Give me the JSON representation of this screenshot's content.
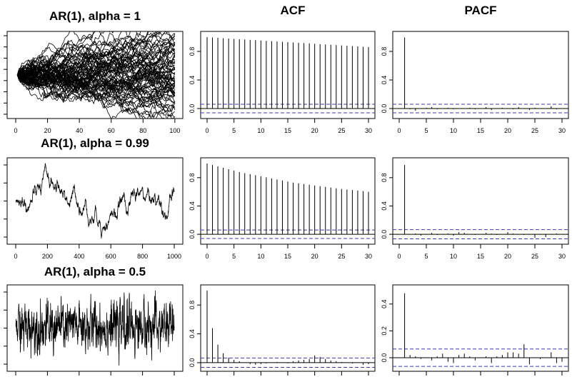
{
  "chart_data": [
    {
      "type": "line",
      "title": "AR(1), alpha = 1",
      "xlabel": "",
      "ylabel": "",
      "xlim": [
        0,
        105
      ],
      "x_ticks": [
        "0",
        "20",
        "40",
        "60",
        "80",
        "100"
      ],
      "series_count": 80,
      "x_count": 100,
      "grid": false
    },
    {
      "type": "bar",
      "title": "ACF",
      "xlabel": "",
      "ylabel": "",
      "xlim": [
        0,
        30
      ],
      "ylim": [
        -0.1,
        1.0
      ],
      "x_ticks": [
        "0",
        "5",
        "10",
        "15",
        "20",
        "25",
        "30"
      ],
      "y_ticks": [
        "0.0",
        "0.4",
        "0.8"
      ],
      "lags": [
        0,
        1,
        2,
        3,
        4,
        5,
        6,
        7,
        8,
        9,
        10,
        11,
        12,
        13,
        14,
        15,
        16,
        17,
        18,
        19,
        20,
        21,
        22,
        23,
        24,
        25,
        26,
        27,
        28,
        29,
        30
      ],
      "values": [
        1.0,
        0.995,
        0.99,
        0.985,
        0.98,
        0.976,
        0.971,
        0.967,
        0.962,
        0.958,
        0.953,
        0.948,
        0.944,
        0.939,
        0.935,
        0.93,
        0.925,
        0.921,
        0.916,
        0.912,
        0.907,
        0.902,
        0.898,
        0.893,
        0.889,
        0.884,
        0.879,
        0.875,
        0.87,
        0.866,
        0.861
      ],
      "ci": 0.06
    },
    {
      "type": "bar",
      "title": "PACF",
      "xlabel": "",
      "ylabel": "",
      "xlim": [
        0,
        30
      ],
      "ylim": [
        -0.1,
        1.0
      ],
      "x_ticks": [
        "0",
        "5",
        "10",
        "15",
        "20",
        "25",
        "30"
      ],
      "y_ticks": [
        "0.0",
        "0.4",
        "0.8"
      ],
      "lags": [
        1,
        2,
        3,
        4,
        5,
        6,
        7,
        8,
        9,
        10,
        11,
        12,
        13,
        14,
        15,
        16,
        17,
        18,
        19,
        20,
        21,
        22,
        23,
        24,
        25,
        26,
        27,
        28,
        29,
        30
      ],
      "values": [
        0.995,
        -0.01,
        -0.03,
        0.0,
        0.01,
        0.02,
        -0.01,
        0.0,
        0.01,
        -0.01,
        0.0,
        0.0,
        0.01,
        -0.01,
        0.0,
        0.02,
        -0.02,
        0.0,
        0.01,
        0.0,
        -0.01,
        0.02,
        0.0,
        -0.02,
        0.01,
        0.0,
        0.0,
        0.03,
        -0.01,
        0.0
      ],
      "ci": 0.06
    },
    {
      "type": "line",
      "title": "AR(1), alpha = 0.99",
      "xlabel": "",
      "ylabel": "",
      "xlim": [
        0,
        1000
      ],
      "x_ticks": [
        "0",
        "200",
        "400",
        "600",
        "800",
        "1000"
      ],
      "x_count": 1000,
      "grid": false
    },
    {
      "type": "bar",
      "title": "",
      "xlabel": "",
      "ylabel": "",
      "xlim": [
        0,
        30
      ],
      "ylim": [
        -0.1,
        1.0
      ],
      "x_ticks": [
        "0",
        "5",
        "10",
        "15",
        "20",
        "25",
        "30"
      ],
      "y_ticks": [
        "0.0",
        "0.4",
        "0.8"
      ],
      "lags": [
        0,
        1,
        2,
        3,
        4,
        5,
        6,
        7,
        8,
        9,
        10,
        11,
        12,
        13,
        14,
        15,
        16,
        17,
        18,
        19,
        20,
        21,
        22,
        23,
        24,
        25,
        26,
        27,
        28,
        29,
        30
      ],
      "values": [
        1.0,
        0.98,
        0.96,
        0.94,
        0.92,
        0.9,
        0.88,
        0.865,
        0.85,
        0.835,
        0.82,
        0.805,
        0.79,
        0.775,
        0.76,
        0.745,
        0.73,
        0.72,
        0.71,
        0.7,
        0.69,
        0.68,
        0.67,
        0.66,
        0.65,
        0.64,
        0.632,
        0.625,
        0.618,
        0.61,
        0.6
      ],
      "ci": 0.06
    },
    {
      "type": "bar",
      "title": "",
      "xlabel": "",
      "ylabel": "",
      "xlim": [
        0,
        30
      ],
      "ylim": [
        -0.1,
        1.0
      ],
      "x_ticks": [
        "0",
        "5",
        "10",
        "15",
        "20",
        "25",
        "30"
      ],
      "y_ticks": [
        "0.0",
        "0.4",
        "0.8"
      ],
      "lags": [
        1,
        2,
        3,
        4,
        5,
        6,
        7,
        8,
        9,
        10,
        11,
        12,
        13,
        14,
        15,
        16,
        17,
        18,
        19,
        20,
        21,
        22,
        23,
        24,
        25,
        26,
        27,
        28,
        29,
        30
      ],
      "values": [
        0.98,
        0.0,
        0.01,
        -0.02,
        0.0,
        0.02,
        -0.01,
        0.0,
        0.01,
        -0.02,
        0.03,
        0.02,
        0.0,
        -0.01,
        0.0,
        0.02,
        0.01,
        -0.01,
        0.0,
        0.03,
        0.01,
        0.0,
        -0.01,
        0.0,
        -0.05,
        0.0,
        -0.04,
        0.0,
        0.01,
        0.0
      ],
      "ci": 0.065
    },
    {
      "type": "line",
      "title": "AR(1), alpha = 0.5",
      "xlabel": "",
      "ylabel": "",
      "xlim": [
        0,
        1000
      ],
      "x_count": 1000,
      "grid": false
    },
    {
      "type": "bar",
      "title": "",
      "xlabel": "",
      "ylabel": "",
      "xlim": [
        0,
        30
      ],
      "ylim": [
        -0.08,
        1.0
      ],
      "y_ticks": [
        "0.0",
        "0.4",
        "0.8"
      ],
      "lags": [
        0,
        1,
        2,
        3,
        4,
        5,
        6,
        7,
        8,
        9,
        10,
        11,
        12,
        13,
        14,
        15,
        16,
        17,
        18,
        19,
        20,
        21,
        22,
        23,
        24,
        25,
        26,
        27,
        28,
        29,
        30
      ],
      "values": [
        1.0,
        0.48,
        0.25,
        0.13,
        0.07,
        0.04,
        0.02,
        0.0,
        -0.02,
        -0.03,
        -0.02,
        -0.01,
        0.0,
        0.01,
        0.0,
        -0.01,
        0.02,
        0.03,
        0.04,
        0.05,
        0.1,
        0.08,
        0.05,
        0.03,
        0.02,
        0.01,
        0.0,
        -0.01,
        0.0,
        -0.03,
        -0.02
      ],
      "ci": 0.065
    },
    {
      "type": "bar",
      "title": "",
      "xlabel": "",
      "ylabel": "",
      "xlim": [
        0,
        30
      ],
      "ylim": [
        -0.08,
        0.5
      ],
      "y_ticks": [
        "0.0",
        "0.2",
        "0.4"
      ],
      "lags": [
        1,
        2,
        3,
        4,
        5,
        6,
        7,
        8,
        9,
        10,
        11,
        12,
        13,
        14,
        15,
        16,
        17,
        18,
        19,
        20,
        21,
        22,
        23,
        24,
        25,
        26,
        27,
        28,
        29,
        30
      ],
      "values": [
        0.48,
        0.02,
        0.01,
        -0.01,
        0.0,
        -0.02,
        0.01,
        0.03,
        -0.03,
        -0.04,
        0.02,
        0.03,
        0.01,
        -0.02,
        0.0,
        0.01,
        -0.04,
        0.01,
        0.02,
        0.04,
        0.04,
        0.03,
        0.1,
        -0.05,
        0.0,
        -0.01,
        0.0,
        0.04,
        -0.04,
        -0.03
      ],
      "ci": 0.065
    }
  ]
}
